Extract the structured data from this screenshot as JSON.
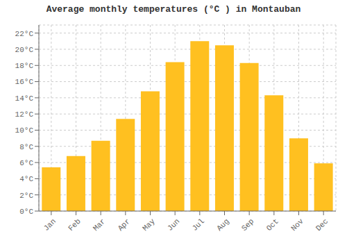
{
  "chart_data": {
    "type": "bar",
    "title": "Average monthly temperatures (°C ) in Montauban",
    "categories": [
      "Jan",
      "Feb",
      "Mar",
      "Apr",
      "May",
      "Jun",
      "Jul",
      "Aug",
      "Sep",
      "Oct",
      "Nov",
      "Dec"
    ],
    "values": [
      5.4,
      6.8,
      8.7,
      11.4,
      14.8,
      18.4,
      21.0,
      20.5,
      18.3,
      14.3,
      9.0,
      5.9
    ],
    "color": "#FFC020",
    "ylim": [
      0,
      23
    ],
    "yticks": [
      {
        "value": 0,
        "label": "0°C"
      },
      {
        "value": 2,
        "label": "2°C"
      },
      {
        "value": 4,
        "label": "4°C"
      },
      {
        "value": 6,
        "label": "6°C"
      },
      {
        "value": 8,
        "label": "8°C"
      },
      {
        "value": 10,
        "label": "10°C"
      },
      {
        "value": 12,
        "label": "12°C"
      },
      {
        "value": 14,
        "label": "14°C"
      },
      {
        "value": 16,
        "label": "16°C"
      },
      {
        "value": 18,
        "label": "18°C"
      },
      {
        "value": 20,
        "label": "20°C"
      },
      {
        "value": 22,
        "label": "22°C"
      }
    ],
    "grid": true
  }
}
